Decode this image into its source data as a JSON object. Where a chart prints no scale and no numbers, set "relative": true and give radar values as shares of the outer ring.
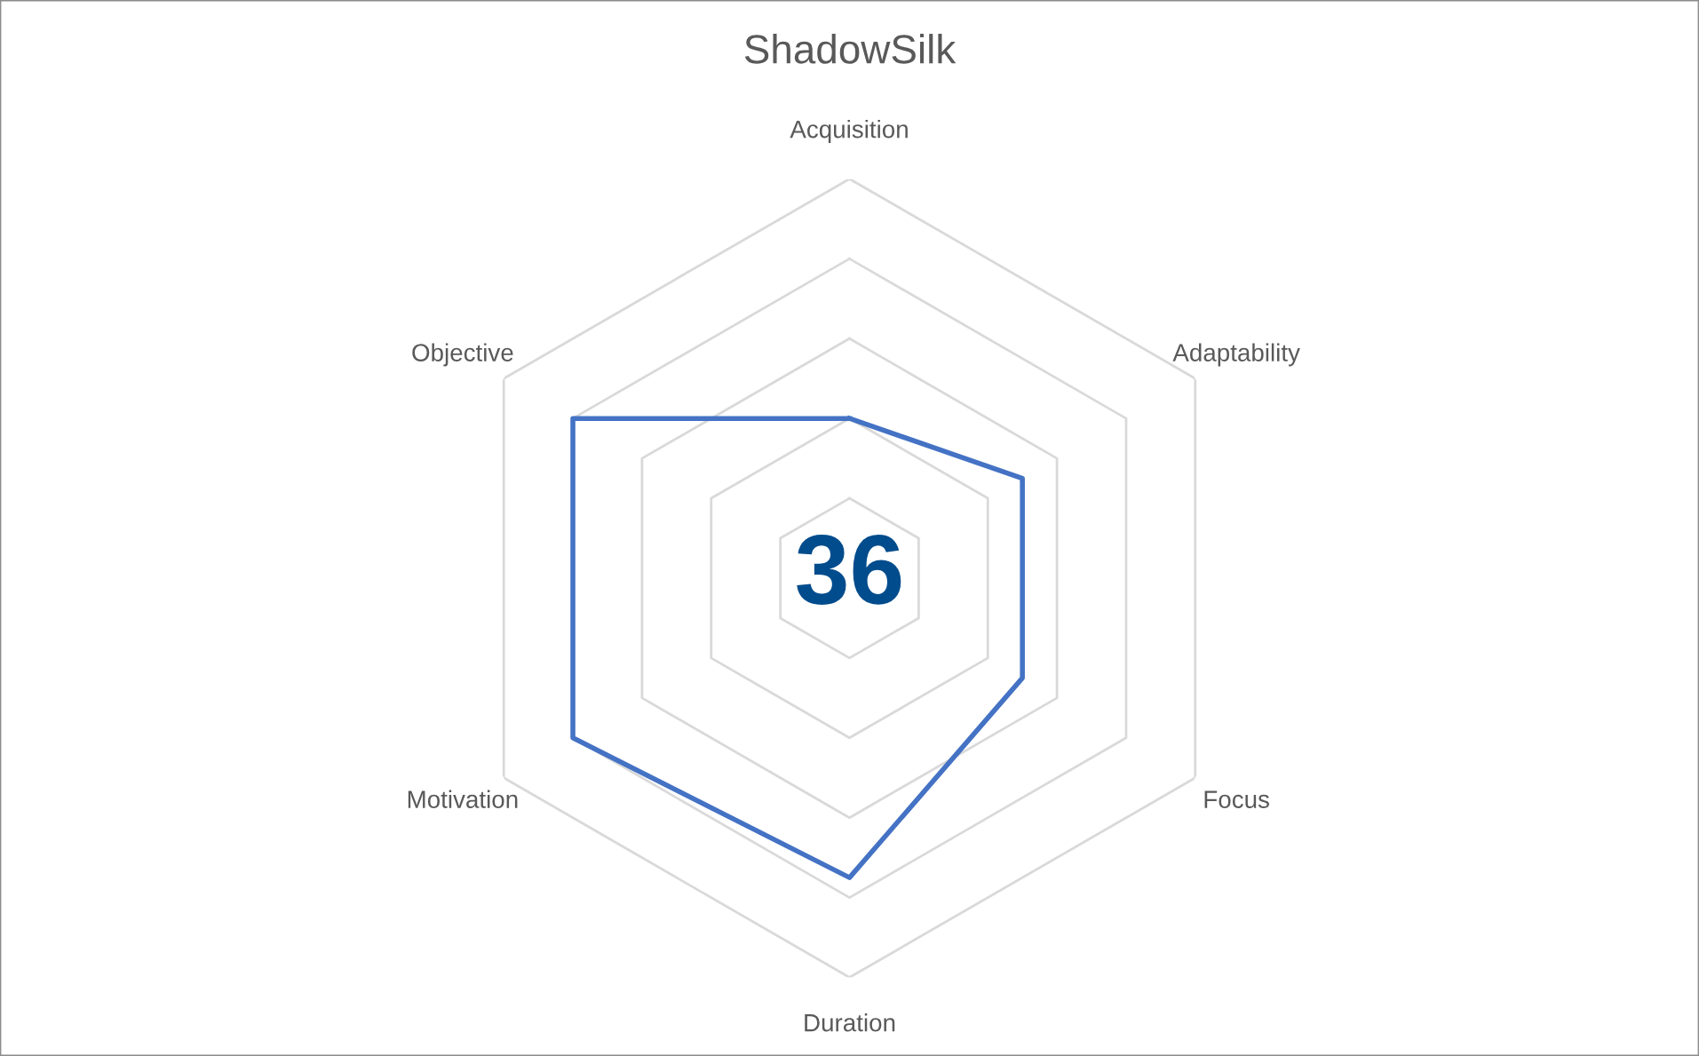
{
  "chart_data": {
    "type": "radar",
    "title": "ShadowSilk",
    "relative": true,
    "grid": true,
    "legend": false,
    "categories": [
      "Acquisition",
      "Adaptability",
      "Focus",
      "Duration",
      "Motivation",
      "Objective"
    ],
    "series": [
      {
        "color": "#4472c4",
        "values": [
          0.4,
          0.5,
          0.5,
          0.75,
          0.8,
          0.8
        ]
      }
    ],
    "annotations": [
      "36"
    ]
  }
}
